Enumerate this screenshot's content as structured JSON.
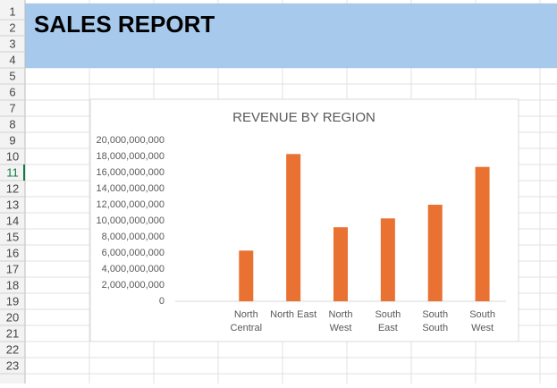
{
  "sheet": {
    "title": "SALES REPORT",
    "row_headers": [
      1,
      2,
      3,
      4,
      5,
      6,
      7,
      8,
      9,
      10,
      11,
      12,
      13,
      14,
      15,
      16,
      17,
      18,
      19,
      20,
      21,
      22,
      23
    ]
  },
  "chart_data": {
    "type": "bar",
    "title": "REVENUE BY REGION",
    "categories": [
      null,
      "North Central",
      "North East",
      "North West",
      "South East",
      "South South",
      "South West"
    ],
    "values": [
      null,
      6300000000,
      18300000000,
      9200000000,
      10300000000,
      12000000000,
      16700000000
    ],
    "color": "#e97132",
    "ylim": [
      0,
      20000000000
    ],
    "yticks": [
      0,
      {
        "value": 2000000000,
        "label": "2,000,000,000"
      },
      {
        "value": 4000000000,
        "label": "4,000,000,000"
      },
      {
        "value": 6000000000,
        "label": "6,000,000,000"
      },
      {
        "value": 8000000000,
        "label": "8,000,000,000"
      },
      {
        "value": 10000000000,
        "label": "10,000,000,000"
      },
      {
        "value": 12000000000,
        "label": "12,000,000,000"
      },
      {
        "value": 14000000000,
        "label": "14,000,000,000"
      },
      {
        "value": 16000000000,
        "label": "16,000,000,000"
      },
      {
        "value": 18000000000,
        "label": "18,000,000,000"
      },
      {
        "value": 20000000000,
        "label": "20,000,000,000"
      }
    ],
    "grid": false
  }
}
